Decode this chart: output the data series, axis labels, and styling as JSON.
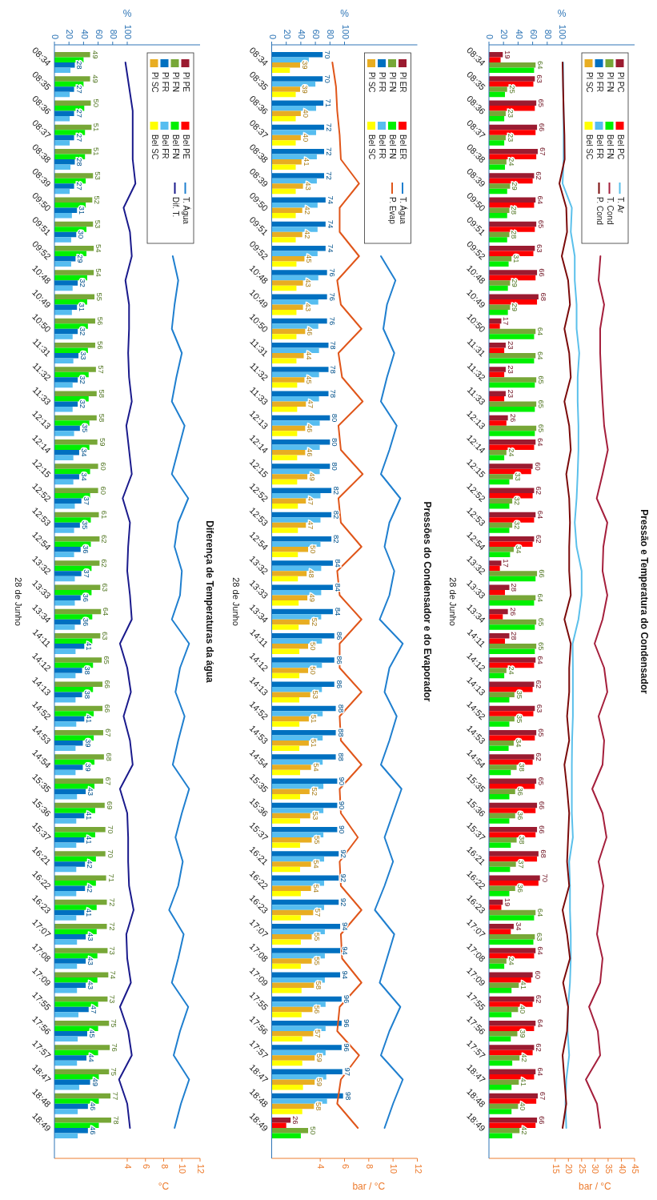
{
  "chart_data": [
    {
      "type": "bar",
      "orientation": "horizontal",
      "title": "Pressão e Temperatura do Condensador",
      "ylabel": "28 de Junho",
      "x2label": "%",
      "xlabel": "bar / °C",
      "categories": [
        "08:34",
        "08:35",
        "08:36",
        "08:37",
        "08:38",
        "08:39",
        "09:50",
        "09:51",
        "09:52",
        "10:48",
        "10:49",
        "10:50",
        "11:31",
        "11:32",
        "11:33",
        "12:13",
        "12:14",
        "12:15",
        "12:52",
        "12:53",
        "12:54",
        "13:32",
        "13:33",
        "13:34",
        "14:11",
        "14:12",
        "14:13",
        "14:52",
        "14:53",
        "14:54",
        "15:35",
        "15:36",
        "15:37",
        "16:21",
        "16:22",
        "16:23",
        "17:07",
        "17:08",
        "17:09",
        "17:55",
        "17:56",
        "17:57",
        "18:47",
        "18:48",
        "18:49"
      ],
      "x2lim": [
        0,
        200
      ],
      "x2ticks": [
        0,
        20,
        40,
        60,
        80,
        100
      ],
      "xlim": [
        -10,
        45
      ],
      "xticks": [
        15,
        20,
        25,
        30,
        35,
        40,
        45
      ],
      "legend": "top right",
      "series": [
        {
          "name": "Pl PC",
          "axis": "x2",
          "color": "#9b1b30",
          "values": [
            19,
            63,
            65,
            66,
            67,
            62,
            64,
            65,
            63,
            66,
            68,
            17,
            23,
            23,
            23,
            26,
            64,
            60,
            62,
            64,
            62,
            17,
            28,
            26,
            28,
            64,
            62,
            63,
            65,
            62,
            65,
            66,
            66,
            68,
            70,
            19,
            34,
            64,
            60,
            62,
            64,
            62,
            64,
            67,
            66
          ],
          "value_labels": [
            "19",
            "63",
            "65",
            "66",
            "67",
            "62",
            "64",
            "65",
            "63",
            "66",
            "68",
            "17",
            "23",
            "23",
            "23",
            "26",
            "64",
            "60",
            "62",
            "64",
            "62",
            "17",
            "28",
            "26",
            "28",
            "64",
            "62",
            "63",
            "65",
            "62",
            "65",
            "66",
            "66",
            "68",
            "70",
            "19",
            "34",
            "64",
            "60",
            "62",
            "64",
            "62",
            "64",
            "67",
            "66"
          ]
        },
        {
          "name": "Pl FN",
          "axis": "x2",
          "color": "#77a737",
          "values": [
            64,
            25,
            23,
            23,
            24,
            29,
            28,
            28,
            31,
            29,
            29,
            64,
            64,
            65,
            65,
            65,
            24,
            33,
            32,
            32,
            34,
            66,
            64,
            65,
            65,
            24,
            35,
            35,
            34,
            38,
            36,
            36,
            38,
            37,
            36,
            64,
            63,
            24,
            41,
            40,
            39,
            42,
            41,
            40,
            42
          ],
          "value_labels": [
            "64",
            "25",
            "23",
            "23",
            "24",
            "29",
            "28",
            "28",
            "31",
            "29",
            "29",
            "64",
            "64",
            "65",
            "65",
            "65",
            "24",
            "33",
            "32",
            "32",
            "34",
            "66",
            "64",
            "65",
            "65",
            "24",
            "35",
            "35",
            "34",
            "38",
            "36",
            "36",
            "38",
            "37",
            "36",
            "64",
            "63",
            "24",
            "41",
            "40",
            "39",
            "42",
            "41",
            "40",
            "42"
          ]
        },
        {
          "name": "Pl FR",
          "axis": "x2",
          "color": "#0070c0",
          "values": [
            null,
            null,
            null,
            null,
            null,
            null,
            null,
            null,
            null,
            null,
            null,
            null,
            null,
            null,
            null,
            null,
            null,
            null,
            null,
            null,
            null,
            null,
            null,
            null,
            null,
            null,
            null,
            null,
            null,
            null,
            null,
            null,
            null,
            null,
            null,
            null,
            null,
            null,
            null,
            null,
            null,
            null,
            null,
            null,
            null
          ]
        },
        {
          "name": "Pl SC",
          "axis": "x2",
          "color": "#e8ad22",
          "values": [
            null,
            null,
            null,
            null,
            null,
            null,
            null,
            null,
            null,
            null,
            null,
            null,
            null,
            null,
            null,
            null,
            null,
            null,
            null,
            null,
            null,
            null,
            null,
            null,
            null,
            null,
            null,
            null,
            null,
            null,
            null,
            null,
            null,
            null,
            null,
            null,
            null,
            null,
            null,
            null,
            null,
            null,
            null,
            null,
            null
          ]
        },
        {
          "name": "Bel PC",
          "axis": "x2",
          "color": "#ff0000",
          "values": [
            16,
            61,
            63,
            64,
            65,
            60,
            62,
            63,
            61,
            64,
            66,
            15,
            21,
            21,
            21,
            24,
            62,
            58,
            60,
            62,
            60,
            15,
            22,
            19,
            22,
            62,
            60,
            61,
            63,
            60,
            63,
            64,
            64,
            66,
            68,
            17,
            30,
            62,
            58,
            60,
            62,
            60,
            62,
            65,
            64
          ]
        },
        {
          "name": "Bel FN",
          "axis": "x2",
          "color": "#00f000",
          "values": [
            62,
            22,
            21,
            21,
            22,
            25,
            25,
            25,
            27,
            26,
            26,
            62,
            62,
            63,
            63,
            63,
            21,
            28,
            28,
            28,
            29,
            64,
            62,
            63,
            63,
            21,
            28,
            28,
            27,
            30,
            28,
            28,
            30,
            29,
            28,
            62,
            61,
            21,
            31,
            31,
            30,
            32,
            31,
            31,
            32
          ]
        },
        {
          "name": "Bel FR",
          "axis": "x2",
          "color": "#56bdf0",
          "values": [
            null,
            null,
            null,
            null,
            null,
            null,
            null,
            null,
            null,
            null,
            null,
            null,
            null,
            null,
            null,
            null,
            null,
            null,
            null,
            null,
            null,
            null,
            null,
            null,
            null,
            null,
            null,
            null,
            null,
            null,
            null,
            null,
            null,
            null,
            null,
            null,
            null,
            null,
            null,
            null,
            null,
            null,
            null,
            null,
            null
          ]
        },
        {
          "name": "Bel SC",
          "axis": "x2",
          "color": "#ffff00",
          "values": [
            null,
            null,
            null,
            null,
            null,
            null,
            null,
            null,
            null,
            null,
            null,
            null,
            null,
            null,
            null,
            null,
            null,
            null,
            null,
            null,
            null,
            null,
            null,
            null,
            null,
            null,
            null,
            null,
            null,
            null,
            null,
            null,
            null,
            null,
            null,
            null,
            null,
            null,
            null,
            null,
            null,
            null,
            null,
            null,
            null
          ]
        },
        {
          "name": "T. Ar",
          "type": "line",
          "color": "#5bc0eb",
          "values": [
            18.0,
            18.0,
            18.2,
            18.2,
            18.2,
            17.8,
            21.3,
            20.9,
            22.4,
            22.4,
            23.1,
            23.1,
            24.1,
            23.5,
            23.5,
            23.8,
            23.8,
            23.5,
            23.1,
            22.4,
            23.1,
            25.0,
            25.0,
            23.8,
            21.6,
            21.7,
            21.7,
            21.7,
            21.4,
            21.3,
            21.3,
            21.3,
            21.7,
            20.3,
            20.6,
            20.6,
            20.9,
            20.9,
            20.6,
            19.9,
            19.7,
            20.3,
            19.2,
            18.9,
            19.2
          ]
        },
        {
          "name": "T. Cond",
          "type": "line",
          "color": "#a51f3c",
          "values": [
            null,
            null,
            null,
            null,
            null,
            null,
            null,
            null,
            32.1,
            31.4,
            33.5,
            32.0,
            32.0,
            32.4,
            32.9,
            33.5,
            34.9,
            32.9,
            30.7,
            34.7,
            33.2,
            32.9,
            34.7,
            32.9,
            29.9,
            33.5,
            34.7,
            31.4,
            33.5,
            32.9,
            29.0,
            32.9,
            34.4,
            31.4,
            33.2,
            32.0,
            30.8,
            32.9,
            32.0,
            27.8,
            31.1,
            32.0,
            26.6,
            30.8,
            32.0
          ]
        },
        {
          "name": "P. Cond",
          "type": "line",
          "color": "#7b0a0a",
          "values": [
            17.8,
            18.0,
            18.2,
            18.5,
            18.6,
            16.6,
            19.2,
            19.5,
            17.5,
            19.9,
            20.6,
            18.5,
            20.3,
            20.9,
            18.5,
            20.3,
            20.9,
            19.2,
            20.3,
            20.6,
            20.3,
            20.3,
            20.9,
            18.5,
            20.9,
            20.3,
            20.3,
            19.5,
            20.3,
            18.5,
            19.5,
            20.3,
            19.9,
            19.5,
            20.3,
            17.8,
            19.5,
            20.6,
            18.0,
            19.9,
            19.5,
            17.8,
            18.5,
            19.2,
            17.8
          ]
        }
      ]
    },
    {
      "type": "bar",
      "orientation": "horizontal",
      "title": "Pressões do Condensador e do Evaporador",
      "ylabel": "28 de Junho",
      "x2label": "%",
      "xlabel": "bar / °C",
      "categories": [
        "08:34",
        "08:35",
        "08:36",
        "08:37",
        "08:38",
        "08:39",
        "09:50",
        "09:51",
        "09:52",
        "10:48",
        "10:49",
        "10:50",
        "11:31",
        "11:32",
        "11:33",
        "12:13",
        "12:14",
        "12:15",
        "12:52",
        "12:53",
        "12:54",
        "13:32",
        "13:33",
        "13:34",
        "14:11",
        "14:12",
        "14:13",
        "14:52",
        "14:53",
        "14:54",
        "15:35",
        "15:36",
        "15:37",
        "16:21",
        "16:22",
        "16:23",
        "17:07",
        "17:08",
        "17:09",
        "17:55",
        "17:56",
        "17:57",
        "18:47",
        "18:48",
        "18:49"
      ],
      "x2lim": [
        0,
        200
      ],
      "x2ticks": [
        0,
        20,
        40,
        60,
        80,
        100
      ],
      "xlim": [
        0,
        12
      ],
      "xticks": [
        4,
        6,
        8,
        10,
        12
      ],
      "legend": "top right",
      "series": [
        {
          "name": "Pl ER",
          "axis": "x2",
          "color": "#9b1b30",
          "values": [
            null,
            null,
            null,
            null,
            null,
            null,
            null,
            null,
            null,
            null,
            null,
            null,
            null,
            null,
            null,
            null,
            null,
            null,
            null,
            null,
            null,
            null,
            null,
            null,
            null,
            null,
            null,
            null,
            null,
            null,
            null,
            null,
            null,
            null,
            null,
            null,
            null,
            null,
            null,
            null,
            null,
            null,
            null,
            null,
            26
          ],
          "value_labels": [
            null,
            null,
            null,
            null,
            null,
            null,
            null,
            null,
            null,
            null,
            null,
            null,
            null,
            null,
            null,
            null,
            null,
            null,
            null,
            null,
            null,
            null,
            null,
            null,
            null,
            null,
            null,
            null,
            null,
            null,
            null,
            null,
            null,
            null,
            null,
            null,
            null,
            null,
            null,
            null,
            null,
            null,
            null,
            null,
            "26"
          ]
        },
        {
          "name": "Pl FN",
          "axis": "x2",
          "color": "#77a737",
          "values": [
            null,
            null,
            null,
            null,
            null,
            null,
            null,
            null,
            null,
            null,
            null,
            null,
            null,
            null,
            null,
            null,
            null,
            null,
            null,
            null,
            null,
            null,
            null,
            null,
            null,
            null,
            null,
            null,
            null,
            null,
            null,
            null,
            null,
            null,
            null,
            null,
            null,
            null,
            null,
            null,
            null,
            null,
            null,
            null,
            50
          ],
          "value_labels": [
            null,
            null,
            null,
            null,
            null,
            null,
            null,
            null,
            null,
            null,
            null,
            null,
            null,
            null,
            null,
            null,
            null,
            null,
            null,
            null,
            null,
            null,
            null,
            null,
            null,
            null,
            null,
            null,
            null,
            null,
            null,
            null,
            null,
            null,
            null,
            null,
            null,
            null,
            null,
            null,
            null,
            null,
            null,
            null,
            "50"
          ]
        },
        {
          "name": "Pl FR",
          "axis": "x2",
          "color": "#0070c0",
          "values": [
            70,
            70,
            71,
            72,
            72,
            72,
            74,
            74,
            74,
            76,
            76,
            76,
            78,
            78,
            78,
            80,
            80,
            80,
            82,
            82,
            82,
            84,
            84,
            84,
            86,
            86,
            86,
            88,
            88,
            88,
            90,
            90,
            90,
            92,
            92,
            92,
            94,
            94,
            94,
            96,
            96,
            96,
            97,
            98,
            null
          ],
          "value_labels": [
            "70",
            "70",
            "71",
            "72",
            "72",
            "72",
            "74",
            "74",
            "74",
            "76",
            "76",
            "76",
            "78",
            "78",
            "78",
            "80",
            "80",
            "80",
            "82",
            "82",
            "82",
            "84",
            "84",
            "84",
            "86",
            "86",
            "86",
            "88",
            "88",
            "88",
            "90",
            "90",
            "90",
            "92",
            "92",
            "92",
            "94",
            "94",
            "94",
            "96",
            "96",
            "96",
            "97",
            "98",
            null
          ]
        },
        {
          "name": "Pl SC",
          "axis": "x2",
          "color": "#e8ad22",
          "values": [
            39,
            39,
            40,
            40,
            41,
            43,
            42,
            42,
            45,
            43,
            43,
            46,
            44,
            45,
            47,
            46,
            46,
            49,
            47,
            47,
            50,
            48,
            49,
            52,
            50,
            50,
            53,
            51,
            51,
            54,
            52,
            53,
            55,
            54,
            54,
            57,
            55,
            55,
            58,
            56,
            57,
            59,
            59,
            58,
            null
          ],
          "value_labels": [
            "39",
            "39",
            "40",
            "40",
            "41",
            "43",
            "42",
            "42",
            "45",
            "43",
            "43",
            "46",
            "44",
            "45",
            "47",
            "46",
            "46",
            "49",
            "47",
            "47",
            "50",
            "48",
            "49",
            "52",
            "50",
            "50",
            "53",
            "51",
            "51",
            "54",
            "52",
            "53",
            "55",
            "54",
            "54",
            "57",
            "55",
            "55",
            "58",
            "56",
            "57",
            "59",
            "59",
            "58",
            null
          ]
        },
        {
          "name": "Bel ER",
          "axis": "x2",
          "color": "#ff0000",
          "values": [
            null,
            null,
            null,
            null,
            null,
            null,
            null,
            null,
            null,
            null,
            null,
            null,
            null,
            null,
            null,
            null,
            null,
            null,
            null,
            null,
            null,
            null,
            null,
            null,
            null,
            null,
            null,
            null,
            null,
            null,
            null,
            null,
            null,
            null,
            null,
            null,
            null,
            null,
            null,
            null,
            null,
            null,
            null,
            null,
            20
          ]
        },
        {
          "name": "Bel FN",
          "axis": "x2",
          "color": "#00f000",
          "values": [
            null,
            null,
            null,
            null,
            null,
            null,
            null,
            null,
            null,
            null,
            null,
            null,
            null,
            null,
            null,
            null,
            null,
            null,
            null,
            null,
            null,
            null,
            null,
            null,
            null,
            null,
            null,
            null,
            null,
            null,
            null,
            null,
            null,
            null,
            null,
            null,
            null,
            null,
            null,
            null,
            null,
            null,
            null,
            null,
            40
          ]
        },
        {
          "name": "Bel FR",
          "axis": "x2",
          "color": "#56bdf0",
          "values": [
            51,
            60,
            61,
            61,
            62,
            62,
            63,
            63,
            63,
            64,
            64,
            64,
            65,
            65,
            65,
            66,
            66,
            66,
            67,
            67,
            67,
            68,
            68,
            68,
            69,
            69,
            69,
            70,
            70,
            70,
            71,
            71,
            71,
            72,
            72,
            72,
            73,
            73,
            73,
            74,
            74,
            74,
            75,
            76,
            null
          ]
        },
        {
          "name": "Bel SC",
          "axis": "x2",
          "color": "#ffff00",
          "values": [
            25,
            33,
            33,
            33,
            33,
            33,
            33,
            33,
            34,
            34,
            34,
            34,
            34,
            35,
            35,
            35,
            35,
            35,
            36,
            36,
            36,
            36,
            37,
            37,
            38,
            38,
            38,
            38,
            38,
            39,
            39,
            39,
            39,
            39,
            40,
            40,
            40,
            40,
            41,
            41,
            42,
            42,
            43,
            42,
            null
          ]
        },
        {
          "name": "T. Água",
          "type": "line",
          "color": "#1f7fcf",
          "values": [
            null,
            null,
            null,
            null,
            null,
            null,
            null,
            null,
            9.0,
            10.2,
            9.5,
            9.2,
            10.1,
            9.5,
            9.0,
            10.3,
            9.7,
            9.0,
            10.6,
            9.7,
            9.3,
            10.1,
            9.7,
            8.9,
            10.8,
            9.7,
            9.3,
            10.3,
            9.7,
            9.0,
            10.7,
            10.0,
            9.3,
            10.0,
            9.3,
            8.5,
            10.1,
            9.5,
            8.9,
            10.6,
            9.7,
            9.0,
            10.8,
            10.0,
            9.3
          ]
        },
        {
          "name": "P. Evap",
          "type": "line",
          "color": "#e0561a",
          "values": [
            5.0,
            5.3,
            5.4,
            5.6,
            5.7,
            7.2,
            5.6,
            5.6,
            7.2,
            5.4,
            5.7,
            7.4,
            5.5,
            5.8,
            7.5,
            5.5,
            5.7,
            7.5,
            5.5,
            5.7,
            7.4,
            5.4,
            5.6,
            7.4,
            5.6,
            5.6,
            7.4,
            5.6,
            5.7,
            7.4,
            5.6,
            5.7,
            7.1,
            5.6,
            5.7,
            7.4,
            5.7,
            5.8,
            7.4,
            5.6,
            5.4,
            7.2,
            5.7,
            5.4,
            7.1
          ]
        }
      ]
    },
    {
      "type": "bar",
      "orientation": "horizontal",
      "title": "Diferença de Temperaturas da água",
      "ylabel": "28 de Junho",
      "x2label": "%",
      "xlabel": "°C",
      "categories": [
        "08:34",
        "08:35",
        "08:36",
        "08:37",
        "08:38",
        "08:39",
        "09:50",
        "09:51",
        "09:52",
        "10:48",
        "10:49",
        "10:50",
        "11:31",
        "11:32",
        "11:33",
        "12:13",
        "12:14",
        "12:15",
        "12:52",
        "12:53",
        "12:54",
        "13:32",
        "13:33",
        "13:34",
        "14:11",
        "14:12",
        "14:13",
        "14:52",
        "14:53",
        "14:54",
        "15:35",
        "15:36",
        "15:37",
        "16:21",
        "16:22",
        "16:23",
        "17:07",
        "17:08",
        "17:09",
        "17:55",
        "17:56",
        "17:57",
        "18:47",
        "18:48",
        "18:49"
      ],
      "x2lim": [
        0,
        200
      ],
      "x2ticks": [
        0,
        20,
        40,
        60,
        80,
        100
      ],
      "xlim": [
        -4,
        12
      ],
      "xticks": [
        4,
        6,
        8,
        10,
        12
      ],
      "legend": "top right",
      "series": [
        {
          "name": "Pl PE",
          "axis": "x2",
          "color": "#9b1b30",
          "values": [
            null,
            null,
            null,
            null,
            null,
            null,
            null,
            null,
            null,
            null,
            null,
            null,
            null,
            null,
            null,
            null,
            null,
            null,
            null,
            null,
            null,
            null,
            null,
            null,
            null,
            null,
            null,
            null,
            null,
            null,
            null,
            null,
            null,
            null,
            null,
            null,
            null,
            null,
            null,
            null,
            null,
            null,
            null,
            null,
            null
          ]
        },
        {
          "name": "Pl FN",
          "axis": "x2",
          "color": "#77a737",
          "values": [
            49,
            49,
            50,
            51,
            51,
            53,
            52,
            53,
            54,
            54,
            55,
            56,
            56,
            57,
            58,
            58,
            59,
            60,
            60,
            61,
            62,
            62,
            63,
            64,
            63,
            65,
            66,
            66,
            67,
            68,
            67,
            69,
            70,
            70,
            71,
            72,
            72,
            73,
            74,
            73,
            75,
            76,
            75,
            77,
            78
          ],
          "value_labels": [
            "49",
            "49",
            "50",
            "51",
            "51",
            "53",
            "52",
            "53",
            "54",
            "54",
            "55",
            "56",
            "56",
            "57",
            "58",
            "58",
            "59",
            "60",
            "60",
            "61",
            "62",
            "62",
            "63",
            "64",
            "63",
            "65",
            "66",
            "66",
            "67",
            "68",
            "67",
            "69",
            "70",
            "70",
            "71",
            "72",
            "72",
            "73",
            "74",
            "73",
            "75",
            "76",
            "75",
            "77",
            "78"
          ]
        },
        {
          "name": "Pl FR",
          "axis": "x2",
          "color": "#0070c0",
          "values": [
            28,
            27,
            27,
            27,
            28,
            27,
            31,
            30,
            29,
            32,
            31,
            32,
            33,
            32,
            32,
            35,
            34,
            34,
            37,
            35,
            36,
            37,
            36,
            36,
            41,
            38,
            38,
            41,
            39,
            39,
            43,
            41,
            41,
            42,
            42,
            41,
            43,
            43,
            43,
            47,
            45,
            44,
            49,
            46,
            46
          ],
          "value_labels": [
            "28",
            "27",
            "27",
            "27",
            "28",
            "27",
            "31",
            "30",
            "29",
            "32",
            "31",
            "32",
            "33",
            "32",
            "32",
            "35",
            "34",
            "34",
            "37",
            "35",
            "36",
            "37",
            "36",
            "36",
            "41",
            "38",
            "38",
            "41",
            "39",
            "39",
            "43",
            "41",
            "41",
            "42",
            "42",
            "41",
            "43",
            "43",
            "43",
            "47",
            "45",
            "44",
            "49",
            "46",
            "46"
          ]
        },
        {
          "name": "Pl SC",
          "axis": "x2",
          "color": "#e8ad22",
          "values": [
            null,
            null,
            null,
            null,
            null,
            null,
            null,
            null,
            null,
            null,
            null,
            null,
            null,
            null,
            null,
            null,
            null,
            null,
            null,
            null,
            null,
            null,
            null,
            null,
            null,
            null,
            null,
            null,
            null,
            null,
            null,
            null,
            null,
            null,
            null,
            null,
            null,
            null,
            null,
            null,
            null,
            null,
            null,
            null,
            null
          ]
        },
        {
          "name": "Bel PE",
          "axis": "x2",
          "color": "#ff0000",
          "values": [
            null,
            null,
            null,
            null,
            null,
            null,
            null,
            null,
            null,
            null,
            null,
            null,
            null,
            null,
            null,
            null,
            null,
            null,
            null,
            null,
            null,
            null,
            null,
            null,
            null,
            null,
            null,
            null,
            null,
            null,
            null,
            null,
            null,
            null,
            null,
            null,
            null,
            null,
            null,
            null,
            null,
            null,
            null,
            null,
            null
          ]
        },
        {
          "name": "Bel FN",
          "axis": "x2",
          "color": "#00f000",
          "values": [
            40,
            40,
            41,
            42,
            42,
            43,
            43,
            44,
            44,
            45,
            45,
            46,
            46,
            47,
            47,
            48,
            48,
            49,
            49,
            50,
            50,
            51,
            51,
            52,
            52,
            53,
            53,
            54,
            54,
            55,
            55,
            56,
            56,
            57,
            57,
            58,
            58,
            59,
            59,
            60,
            60,
            60,
            61,
            61,
            61
          ]
        },
        {
          "name": "Bel FR",
          "axis": "x2",
          "color": "#56bdf0",
          "values": [
            22,
            21,
            21,
            21,
            22,
            21,
            24,
            23,
            23,
            25,
            24,
            25,
            26,
            25,
            25,
            27,
            26,
            26,
            28,
            27,
            27,
            28,
            28,
            28,
            29,
            29,
            29,
            30,
            29,
            29,
            31,
            30,
            30,
            30,
            30,
            30,
            31,
            31,
            31,
            33,
            32,
            31,
            34,
            32,
            32
          ]
        },
        {
          "name": "Bel SC",
          "axis": "x2",
          "color": "#ffff00",
          "values": [
            null,
            null,
            null,
            null,
            null,
            null,
            null,
            null,
            null,
            null,
            null,
            null,
            null,
            null,
            null,
            null,
            null,
            null,
            null,
            null,
            null,
            null,
            null,
            null,
            null,
            null,
            null,
            null,
            null,
            null,
            null,
            null,
            null,
            null,
            null,
            null,
            null,
            null,
            null,
            null,
            null,
            null,
            null,
            null,
            null
          ]
        },
        {
          "name": "T. Água",
          "type": "line",
          "color": "#1f7fcf",
          "values": [
            null,
            null,
            null,
            null,
            null,
            null,
            null,
            null,
            9.0,
            9.6,
            9.2,
            8.9,
            10.0,
            9.4,
            8.9,
            10.3,
            9.6,
            8.9,
            10.7,
            9.6,
            9.2,
            10.0,
            9.8,
            8.9,
            10.8,
            9.8,
            9.3,
            10.3,
            9.6,
            9.0,
            10.8,
            10.0,
            9.3,
            10.1,
            9.6,
            8.6,
            10.2,
            9.6,
            8.9,
            10.7,
            9.8,
            9.1,
            10.8,
            9.9,
            9.2
          ]
        },
        {
          "name": "Dif. T.",
          "type": "line",
          "color": "#1a1a8c",
          "values": [
            3.8,
            4.2,
            4.6,
            4.6,
            4.6,
            4.9,
            3.6,
            4.3,
            4.5,
            3.8,
            4.2,
            4.2,
            4.1,
            4.2,
            4.5,
            3.9,
            4.2,
            4.5,
            3.5,
            4.3,
            4.1,
            4.0,
            4.3,
            4.5,
            3.2,
            4.0,
            4.4,
            3.6,
            4.3,
            4.6,
            3.2,
            4.0,
            4.1,
            4.1,
            4.2,
            4.7,
            3.9,
            4.0,
            4.4,
            3.2,
            4.1,
            4.5,
            3.1,
            4.0,
            4.3
          ]
        }
      ]
    }
  ]
}
